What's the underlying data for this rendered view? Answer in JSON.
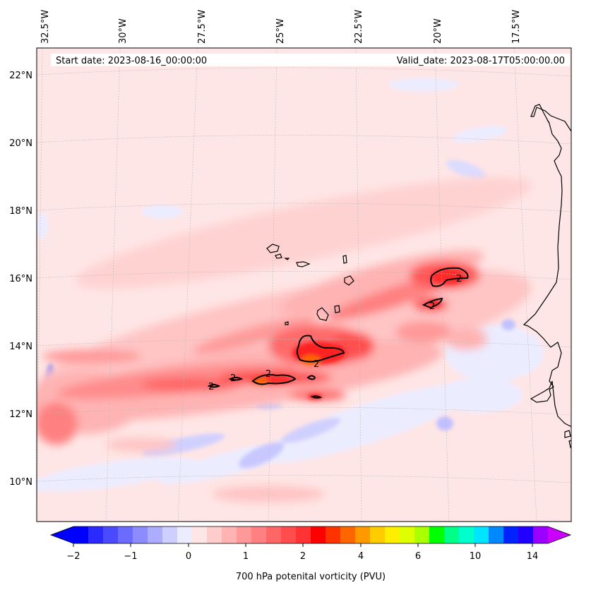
{
  "header": {
    "start_date": "Start date: 2023-08-16_00:00:00",
    "valid_date": "Valid_date: 2023-08-17T05:00:00.00"
  },
  "map": {
    "lon_labels": [
      "32.5°W",
      "30°W",
      "27.5°W",
      "25°W",
      "22.5°W",
      "20°W",
      "17.5°W"
    ],
    "lat_labels": [
      "22°N",
      "20°N",
      "18°N",
      "16°N",
      "14°N",
      "12°N",
      "10°N"
    ],
    "contour_label": "2",
    "colors": {
      "background": "#ffe6e6",
      "light_red": "#ffb3b3",
      "mid_red": "#ff7a7a",
      "red": "#ff2a2a",
      "orange": "#ff7a00",
      "light_blue": "#ebebff",
      "blue": "#c8c8ff",
      "coast": "#000000"
    }
  },
  "colorbar": {
    "ticks": [
      "−2",
      "−1",
      "0",
      "1",
      "2",
      "4",
      "6",
      "10",
      "14"
    ],
    "label": "700 hPa potenital vorticity (PVU)",
    "colors": [
      "#0000ff",
      "#2a2aff",
      "#4a4aff",
      "#6b6bff",
      "#8c8cff",
      "#adadff",
      "#cfcfff",
      "#ececff",
      "#ffe6e6",
      "#ffcccc",
      "#ffb3b3",
      "#ff9999",
      "#ff8080",
      "#ff6666",
      "#ff4c4c",
      "#ff3333",
      "#ff0000",
      "#ff3300",
      "#ff6600",
      "#ff9900",
      "#ffcc00",
      "#ffee00",
      "#ddff00",
      "#aaff00",
      "#00ff00",
      "#00ff88",
      "#00ffcc",
      "#00e5ff",
      "#0088ff",
      "#0022ff",
      "#2200ff",
      "#9900ff"
    ],
    "extend_low_color": "#0000ff",
    "extend_high_color": "#cc00ff"
  }
}
